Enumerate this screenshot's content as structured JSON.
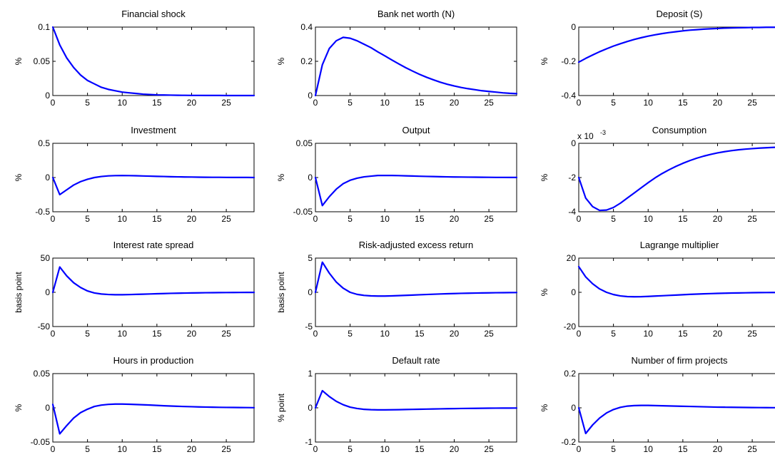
{
  "figure": {
    "series_color": "#0000ff"
  },
  "chart_data": [
    {
      "type": "line",
      "title": "Financial shock",
      "ylabel": "%",
      "xlim": [
        0,
        29
      ],
      "ylim": [
        0,
        0.1
      ],
      "xticks": [
        0,
        5,
        10,
        15,
        20,
        25
      ],
      "yticks": [
        0,
        0.05,
        0.1
      ],
      "ytick_labels": [
        "0",
        "0.05",
        "0.1"
      ],
      "exponent_label": "",
      "x": [
        0,
        1,
        2,
        3,
        4,
        5,
        6,
        7,
        8,
        9,
        10,
        11,
        12,
        13,
        14,
        15,
        16,
        17,
        18,
        19,
        20,
        21,
        22,
        23,
        24,
        25,
        26,
        27,
        28,
        29
      ],
      "series": [
        {
          "values": [
            0.1,
            0.074,
            0.055,
            0.041,
            0.03,
            0.022,
            0.017,
            0.012,
            0.009,
            0.007,
            0.005,
            0.004,
            0.003,
            0.002,
            0.0015,
            0.001,
            0.0008,
            0.0006,
            0.0004,
            0.0003,
            0.0002,
            0.0002,
            0.0001,
            0.0001,
            0.0001,
            0,
            0,
            0,
            0,
            0
          ]
        }
      ]
    },
    {
      "type": "line",
      "title": "Bank net worth (N)",
      "ylabel": "%",
      "xlim": [
        0,
        29
      ],
      "ylim": [
        0,
        0.4
      ],
      "xticks": [
        0,
        5,
        10,
        15,
        20,
        25
      ],
      "yticks": [
        0,
        0.2,
        0.4
      ],
      "ytick_labels": [
        "0",
        "0.2",
        "0.4"
      ],
      "exponent_label": "",
      "x": [
        0,
        1,
        2,
        3,
        4,
        5,
        6,
        7,
        8,
        9,
        10,
        11,
        12,
        13,
        14,
        15,
        16,
        17,
        18,
        19,
        20,
        21,
        22,
        23,
        24,
        25,
        26,
        27,
        28,
        29
      ],
      "series": [
        {
          "values": [
            0,
            0.18,
            0.275,
            0.32,
            0.34,
            0.335,
            0.32,
            0.3,
            0.28,
            0.255,
            0.232,
            0.208,
            0.185,
            0.163,
            0.143,
            0.124,
            0.107,
            0.092,
            0.078,
            0.066,
            0.056,
            0.047,
            0.04,
            0.034,
            0.028,
            0.024,
            0.02,
            0.016,
            0.013,
            0.011
          ]
        }
      ]
    },
    {
      "type": "line",
      "title": "Deposit (S)",
      "ylabel": "%",
      "xlim": [
        0,
        29
      ],
      "ylim": [
        -0.4,
        0
      ],
      "xticks": [
        0,
        5,
        10,
        15,
        20,
        25
      ],
      "yticks": [
        -0.4,
        -0.2,
        0
      ],
      "ytick_labels": [
        "-0.4",
        "-0.2",
        "0"
      ],
      "exponent_label": "",
      "x": [
        0,
        1,
        2,
        3,
        4,
        5,
        6,
        7,
        8,
        9,
        10,
        11,
        12,
        13,
        14,
        15,
        16,
        17,
        18,
        19,
        20,
        21,
        22,
        23,
        24,
        25,
        26,
        27,
        28,
        29
      ],
      "series": [
        {
          "values": [
            -0.205,
            -0.183,
            -0.163,
            -0.144,
            -0.127,
            -0.111,
            -0.097,
            -0.084,
            -0.072,
            -0.062,
            -0.053,
            -0.045,
            -0.038,
            -0.032,
            -0.027,
            -0.022,
            -0.018,
            -0.015,
            -0.012,
            -0.01,
            -0.008,
            -0.006,
            -0.005,
            -0.004,
            -0.003,
            -0.002,
            -0.002,
            -0.001,
            -0.001,
            -0.001
          ]
        }
      ]
    },
    {
      "type": "line",
      "title": "Investment",
      "ylabel": "%",
      "xlim": [
        0,
        29
      ],
      "ylim": [
        -0.5,
        0.5
      ],
      "xticks": [
        0,
        5,
        10,
        15,
        20,
        25
      ],
      "yticks": [
        -0.5,
        0,
        0.5
      ],
      "ytick_labels": [
        "-0.5",
        "0",
        "0.5"
      ],
      "exponent_label": "",
      "x": [
        0,
        1,
        2,
        3,
        4,
        5,
        6,
        7,
        8,
        9,
        10,
        11,
        12,
        13,
        14,
        15,
        16,
        17,
        18,
        19,
        20,
        21,
        22,
        23,
        24,
        25,
        26,
        27,
        28,
        29
      ],
      "series": [
        {
          "values": [
            0,
            -0.25,
            -0.18,
            -0.11,
            -0.06,
            -0.025,
            0,
            0.015,
            0.024,
            0.028,
            0.029,
            0.028,
            0.026,
            0.023,
            0.02,
            0.017,
            0.015,
            0.012,
            0.01,
            0.008,
            0.007,
            0.005,
            0.004,
            0.003,
            0.003,
            0.002,
            0.001,
            0.001,
            0.001,
            0
          ]
        }
      ]
    },
    {
      "type": "line",
      "title": "Output",
      "ylabel": "%",
      "xlim": [
        0,
        29
      ],
      "ylim": [
        -0.05,
        0.05
      ],
      "xticks": [
        0,
        5,
        10,
        15,
        20,
        25
      ],
      "yticks": [
        -0.05,
        0,
        0.05
      ],
      "ytick_labels": [
        "-0.05",
        "0",
        "0.05"
      ],
      "exponent_label": "",
      "x": [
        0,
        1,
        2,
        3,
        4,
        5,
        6,
        7,
        8,
        9,
        10,
        11,
        12,
        13,
        14,
        15,
        16,
        17,
        18,
        19,
        20,
        21,
        22,
        23,
        24,
        25,
        26,
        27,
        28,
        29
      ],
      "series": [
        {
          "values": [
            0,
            -0.041,
            -0.028,
            -0.017,
            -0.009,
            -0.004,
            -0.001,
            0.001,
            0.002,
            0.003,
            0.003,
            0.003,
            0.0028,
            0.0025,
            0.0022,
            0.0019,
            0.0016,
            0.0014,
            0.0012,
            0.001,
            0.0008,
            0.0007,
            0.0006,
            0.0005,
            0.0004,
            0.0003,
            0.0002,
            0.0002,
            0.0001,
            0.0001
          ]
        }
      ]
    },
    {
      "type": "line",
      "title": "Consumption",
      "ylabel": "%",
      "xlim": [
        0,
        29
      ],
      "ylim": [
        -4,
        0
      ],
      "xticks": [
        0,
        5,
        10,
        15,
        20,
        25
      ],
      "yticks": [
        -4,
        -2,
        0
      ],
      "ytick_labels": [
        "-4",
        "-2",
        "0"
      ],
      "exponent_label": "x 10",
      "exponent_power": "-3",
      "x": [
        0,
        1,
        2,
        3,
        4,
        5,
        6,
        7,
        8,
        9,
        10,
        11,
        12,
        13,
        14,
        15,
        16,
        17,
        18,
        19,
        20,
        21,
        22,
        23,
        24,
        25,
        26,
        27,
        28,
        29
      ],
      "series": [
        {
          "values": [
            -2.0,
            -3.2,
            -3.7,
            -3.92,
            -3.9,
            -3.75,
            -3.5,
            -3.2,
            -2.9,
            -2.6,
            -2.3,
            -2.02,
            -1.77,
            -1.55,
            -1.35,
            -1.17,
            -1.01,
            -0.87,
            -0.75,
            -0.65,
            -0.56,
            -0.49,
            -0.43,
            -0.38,
            -0.34,
            -0.31,
            -0.28,
            -0.26,
            -0.24,
            -0.22
          ]
        }
      ]
    },
    {
      "type": "line",
      "title": "Interest rate spread",
      "ylabel": "basis point",
      "xlim": [
        0,
        29
      ],
      "ylim": [
        -50,
        50
      ],
      "xticks": [
        0,
        5,
        10,
        15,
        20,
        25
      ],
      "yticks": [
        -50,
        0,
        50
      ],
      "ytick_labels": [
        "-50",
        "0",
        "50"
      ],
      "exponent_label": "",
      "x": [
        0,
        1,
        2,
        3,
        4,
        5,
        6,
        7,
        8,
        9,
        10,
        11,
        12,
        13,
        14,
        15,
        16,
        17,
        18,
        19,
        20,
        21,
        22,
        23,
        24,
        25,
        26,
        27,
        28,
        29
      ],
      "series": [
        {
          "values": [
            0,
            37,
            24,
            14,
            7,
            2,
            -1,
            -2.5,
            -3.2,
            -3.5,
            -3.5,
            -3.3,
            -3.0,
            -2.7,
            -2.4,
            -2.1,
            -1.8,
            -1.5,
            -1.3,
            -1.1,
            -0.9,
            -0.75,
            -0.6,
            -0.5,
            -0.4,
            -0.3,
            -0.25,
            -0.2,
            -0.15,
            -0.1
          ]
        }
      ]
    },
    {
      "type": "line",
      "title": "Risk-adjusted excess return",
      "ylabel": "basis point",
      "xlim": [
        0,
        29
      ],
      "ylim": [
        -5,
        5
      ],
      "xticks": [
        0,
        5,
        10,
        15,
        20,
        25
      ],
      "yticks": [
        -5,
        0,
        5
      ],
      "ytick_labels": [
        "-5",
        "0",
        "5"
      ],
      "exponent_label": "",
      "x": [
        0,
        1,
        2,
        3,
        4,
        5,
        6,
        7,
        8,
        9,
        10,
        11,
        12,
        13,
        14,
        15,
        16,
        17,
        18,
        19,
        20,
        21,
        22,
        23,
        24,
        25,
        26,
        27,
        28,
        29
      ],
      "series": [
        {
          "values": [
            0,
            4.4,
            2.8,
            1.5,
            0.6,
            0,
            -0.3,
            -0.45,
            -0.52,
            -0.55,
            -0.55,
            -0.52,
            -0.48,
            -0.44,
            -0.4,
            -0.36,
            -0.32,
            -0.28,
            -0.24,
            -0.21,
            -0.18,
            -0.15,
            -0.13,
            -0.11,
            -0.09,
            -0.08,
            -0.06,
            -0.05,
            -0.04,
            -0.03
          ]
        }
      ]
    },
    {
      "type": "line",
      "title": "Lagrange multiplier",
      "ylabel": "%",
      "xlim": [
        0,
        29
      ],
      "ylim": [
        -20,
        20
      ],
      "xticks": [
        0,
        5,
        10,
        15,
        20,
        25
      ],
      "yticks": [
        -20,
        0,
        20
      ],
      "ytick_labels": [
        "-20",
        "0",
        "20"
      ],
      "exponent_label": "",
      "x": [
        0,
        1,
        2,
        3,
        4,
        5,
        6,
        7,
        8,
        9,
        10,
        11,
        12,
        13,
        14,
        15,
        16,
        17,
        18,
        19,
        20,
        21,
        22,
        23,
        24,
        25,
        26,
        27,
        28,
        29
      ],
      "series": [
        {
          "values": [
            15,
            9,
            5,
            2,
            0,
            -1.3,
            -2.1,
            -2.5,
            -2.6,
            -2.55,
            -2.4,
            -2.2,
            -2.0,
            -1.8,
            -1.6,
            -1.4,
            -1.2,
            -1.05,
            -0.9,
            -0.75,
            -0.63,
            -0.52,
            -0.43,
            -0.35,
            -0.28,
            -0.22,
            -0.17,
            -0.13,
            -0.1,
            -0.08
          ]
        }
      ]
    },
    {
      "type": "line",
      "title": "Hours in production",
      "ylabel": "%",
      "xlim": [
        0,
        29
      ],
      "ylim": [
        -0.05,
        0.05
      ],
      "xticks": [
        0,
        5,
        10,
        15,
        20,
        25
      ],
      "yticks": [
        -0.05,
        0,
        0.05
      ],
      "ytick_labels": [
        "-0.05",
        "0",
        "0.05"
      ],
      "exponent_label": "",
      "x": [
        0,
        1,
        2,
        3,
        4,
        5,
        6,
        7,
        8,
        9,
        10,
        11,
        12,
        13,
        14,
        15,
        16,
        17,
        18,
        19,
        20,
        21,
        22,
        23,
        24,
        25,
        26,
        27,
        28,
        29
      ],
      "series": [
        {
          "values": [
            0.005,
            -0.038,
            -0.026,
            -0.015,
            -0.007,
            -0.002,
            0.002,
            0.004,
            0.005,
            0.0055,
            0.0055,
            0.0052,
            0.0048,
            0.0044,
            0.004,
            0.0035,
            0.003,
            0.0026,
            0.0022,
            0.0019,
            0.0016,
            0.0013,
            0.0011,
            0.0009,
            0.0007,
            0.0006,
            0.0005,
            0.0004,
            0.0003,
            0.0002
          ]
        }
      ]
    },
    {
      "type": "line",
      "title": "Default rate",
      "ylabel": "% point",
      "xlim": [
        0,
        29
      ],
      "ylim": [
        -1,
        1
      ],
      "xticks": [
        0,
        5,
        10,
        15,
        20,
        25
      ],
      "yticks": [
        -1,
        0,
        1
      ],
      "ytick_labels": [
        "-1",
        "0",
        "1"
      ],
      "exponent_label": "",
      "x": [
        0,
        1,
        2,
        3,
        4,
        5,
        6,
        7,
        8,
        9,
        10,
        11,
        12,
        13,
        14,
        15,
        16,
        17,
        18,
        19,
        20,
        21,
        22,
        23,
        24,
        25,
        26,
        27,
        28,
        29
      ],
      "series": [
        {
          "values": [
            0,
            0.5,
            0.33,
            0.19,
            0.09,
            0.02,
            -0.02,
            -0.045,
            -0.055,
            -0.06,
            -0.06,
            -0.058,
            -0.055,
            -0.05,
            -0.046,
            -0.042,
            -0.038,
            -0.034,
            -0.03,
            -0.026,
            -0.023,
            -0.02,
            -0.017,
            -0.015,
            -0.013,
            -0.011,
            -0.009,
            -0.008,
            -0.007,
            -0.006
          ]
        }
      ]
    },
    {
      "type": "line",
      "title": "Number of firm projects",
      "ylabel": "%",
      "xlim": [
        0,
        29
      ],
      "ylim": [
        -0.2,
        0.2
      ],
      "xticks": [
        0,
        5,
        10,
        15,
        20,
        25
      ],
      "yticks": [
        -0.2,
        0,
        0.2
      ],
      "ytick_labels": [
        "-0.2",
        "0",
        "0.2"
      ],
      "exponent_label": "",
      "x": [
        0,
        1,
        2,
        3,
        4,
        5,
        6,
        7,
        8,
        9,
        10,
        11,
        12,
        13,
        14,
        15,
        16,
        17,
        18,
        19,
        20,
        21,
        22,
        23,
        24,
        25,
        26,
        27,
        28,
        29
      ],
      "series": [
        {
          "values": [
            0,
            -0.15,
            -0.1,
            -0.06,
            -0.03,
            -0.01,
            0.003,
            0.01,
            0.013,
            0.014,
            0.014,
            0.013,
            0.012,
            0.011,
            0.01,
            0.009,
            0.008,
            0.007,
            0.006,
            0.005,
            0.004,
            0.0035,
            0.003,
            0.0025,
            0.002,
            0.0016,
            0.0013,
            0.001,
            0.0008,
            0.0006
          ]
        }
      ]
    }
  ]
}
